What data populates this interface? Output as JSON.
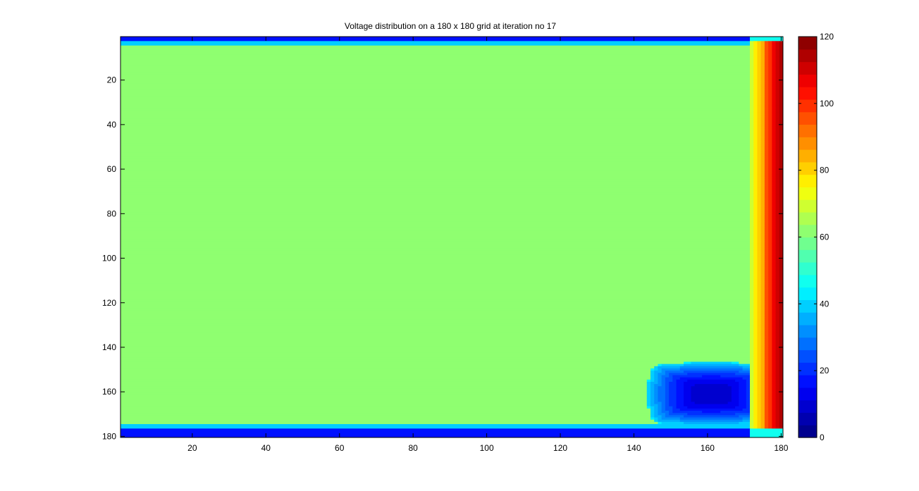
{
  "chart_data": {
    "type": "heatmap",
    "title": "Voltage distribution on a 180 x 180 grid at iteration no 17",
    "xlabel": "",
    "ylabel": "",
    "xlim": [
      0.5,
      180.5
    ],
    "ylim": [
      0.5,
      180.5
    ],
    "y_reversed": true,
    "x_ticks": [
      20,
      40,
      60,
      80,
      100,
      120,
      140,
      160,
      180
    ],
    "y_ticks": [
      20,
      40,
      60,
      80,
      100,
      120,
      140,
      160,
      180
    ],
    "colormap": "jet",
    "clim": [
      0,
      120
    ],
    "colorbar_ticks": [
      0,
      20,
      40,
      60,
      80,
      100,
      120
    ],
    "colorbar_levels": 32,
    "bulk_value": 60,
    "regions": [
      {
        "name": "top edge",
        "rows": [
          1,
          2
        ],
        "value": 15
      },
      {
        "name": "top halo",
        "rows": [
          3,
          4
        ],
        "value": 40
      },
      {
        "name": "bottom halo",
        "rows": [
          175,
          176
        ],
        "value": 40
      },
      {
        "name": "bottom edge",
        "rows": [
          177,
          180
        ],
        "value": 15
      },
      {
        "name": "right edge gradient",
        "cols": [
          172,
          180
        ],
        "values": [
          70,
          75,
          80,
          85,
          95,
          100,
          105,
          110,
          115
        ]
      },
      {
        "name": "low-voltage well",
        "center": [
          161,
          161
        ],
        "min_value": 8
      }
    ]
  }
}
